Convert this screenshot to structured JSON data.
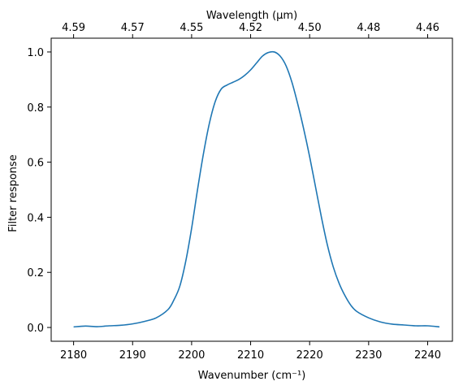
{
  "chart_data": {
    "type": "line",
    "title": "",
    "xlabel": "Wavenumber (cm⁻¹)",
    "ylabel": "Filter response",
    "top_xlabel": "Wavelength (μm)",
    "xlim": [
      2176.2,
      2244.2
    ],
    "ylim": [
      -0.05,
      1.05
    ],
    "x_ticks": [
      2180,
      2190,
      2200,
      2210,
      2220,
      2230,
      2240
    ],
    "y_ticks": [
      0.0,
      0.2,
      0.4,
      0.6,
      0.8,
      1.0
    ],
    "y_tick_labels": [
      "0.0",
      "0.2",
      "0.4",
      "0.6",
      "0.8",
      "1.0"
    ],
    "top_ticks": [
      {
        "label": "4.59",
        "wavenumber": 2180
      },
      {
        "label": "4.57",
        "wavenumber": 2190
      },
      {
        "label": "4.55",
        "wavenumber": 2200
      },
      {
        "label": "4.52",
        "wavenumber": 2210
      },
      {
        "label": "4.50",
        "wavenumber": 2220
      },
      {
        "label": "4.48",
        "wavenumber": 2230
      },
      {
        "label": "4.46",
        "wavenumber": 2240
      }
    ],
    "grid": false,
    "series": [
      {
        "color": "#1f77b4",
        "x": [
          2180,
          2182,
          2184,
          2186,
          2188,
          2190,
          2192,
          2194,
          2196,
          2197,
          2198,
          2199,
          2200,
          2201,
          2202,
          2203,
          2204,
          2205,
          2206,
          2207,
          2208,
          2209,
          2210,
          2211,
          2212,
          2213,
          2214,
          2215,
          2216,
          2217,
          2218,
          2219,
          2220,
          2221,
          2222,
          2223,
          2224,
          2225,
          2226,
          2227,
          2228,
          2230,
          2232,
          2234,
          2236,
          2238,
          2240,
          2242
        ],
        "y": [
          0.002,
          0.005,
          0.003,
          0.006,
          0.008,
          0.013,
          0.022,
          0.035,
          0.065,
          0.1,
          0.15,
          0.24,
          0.36,
          0.5,
          0.63,
          0.74,
          0.82,
          0.865,
          0.88,
          0.89,
          0.9,
          0.915,
          0.935,
          0.96,
          0.985,
          0.998,
          1.0,
          0.985,
          0.95,
          0.89,
          0.81,
          0.72,
          0.62,
          0.51,
          0.4,
          0.3,
          0.22,
          0.16,
          0.115,
          0.08,
          0.058,
          0.035,
          0.02,
          0.012,
          0.009,
          0.006,
          0.006,
          0.002
        ]
      }
    ]
  }
}
